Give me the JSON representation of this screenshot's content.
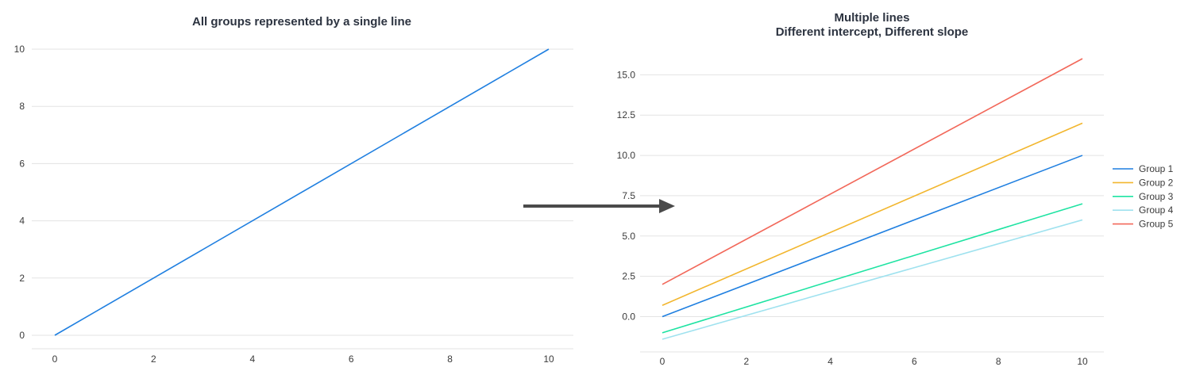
{
  "chart_data": [
    {
      "type": "line",
      "title": "All groups represented by a single line",
      "subtitle": "",
      "xlabel": "",
      "ylabel": "",
      "xlim": [
        0,
        10
      ],
      "ylim": [
        0,
        10
      ],
      "x_ticks": [
        "0",
        "2",
        "4",
        "6",
        "8",
        "10"
      ],
      "y_ticks": [
        "0",
        "2",
        "4",
        "6",
        "8",
        "10"
      ],
      "grid": "horizontal",
      "series": [
        {
          "color": "#1f7fe0",
          "x": [
            0,
            10
          ],
          "y": [
            0,
            10
          ]
        }
      ]
    },
    {
      "type": "line",
      "title": "Multiple lines",
      "subtitle": "Different intercept, Different slope",
      "xlabel": "",
      "ylabel": "",
      "xlim": [
        0,
        10
      ],
      "ylim": [
        -1.4,
        16
      ],
      "x_ticks": [
        "0",
        "2",
        "4",
        "6",
        "8",
        "10"
      ],
      "y_ticks": [
        "0.0",
        "2.5",
        "5.0",
        "7.5",
        "10.0",
        "12.5",
        "15.0"
      ],
      "grid": "horizontal",
      "legend": "right",
      "series": [
        {
          "name": "Group 1",
          "color": "#1f7fe0",
          "x": [
            0,
            10
          ],
          "y": [
            0,
            10
          ]
        },
        {
          "name": "Group 2",
          "color": "#f2b62e",
          "x": [
            0,
            10
          ],
          "y": [
            0.7,
            12
          ]
        },
        {
          "name": "Group 3",
          "color": "#1ee3a2",
          "x": [
            0,
            10
          ],
          "y": [
            -1,
            7
          ]
        },
        {
          "name": "Group 4",
          "color": "#9fe2ef",
          "x": [
            0,
            10
          ],
          "y": [
            -1.4,
            6
          ]
        },
        {
          "name": "Group 5",
          "color": "#f2685a",
          "x": [
            0,
            10
          ],
          "y": [
            2,
            16
          ]
        }
      ]
    }
  ],
  "arrow": {
    "color": "#4a4a4a"
  }
}
